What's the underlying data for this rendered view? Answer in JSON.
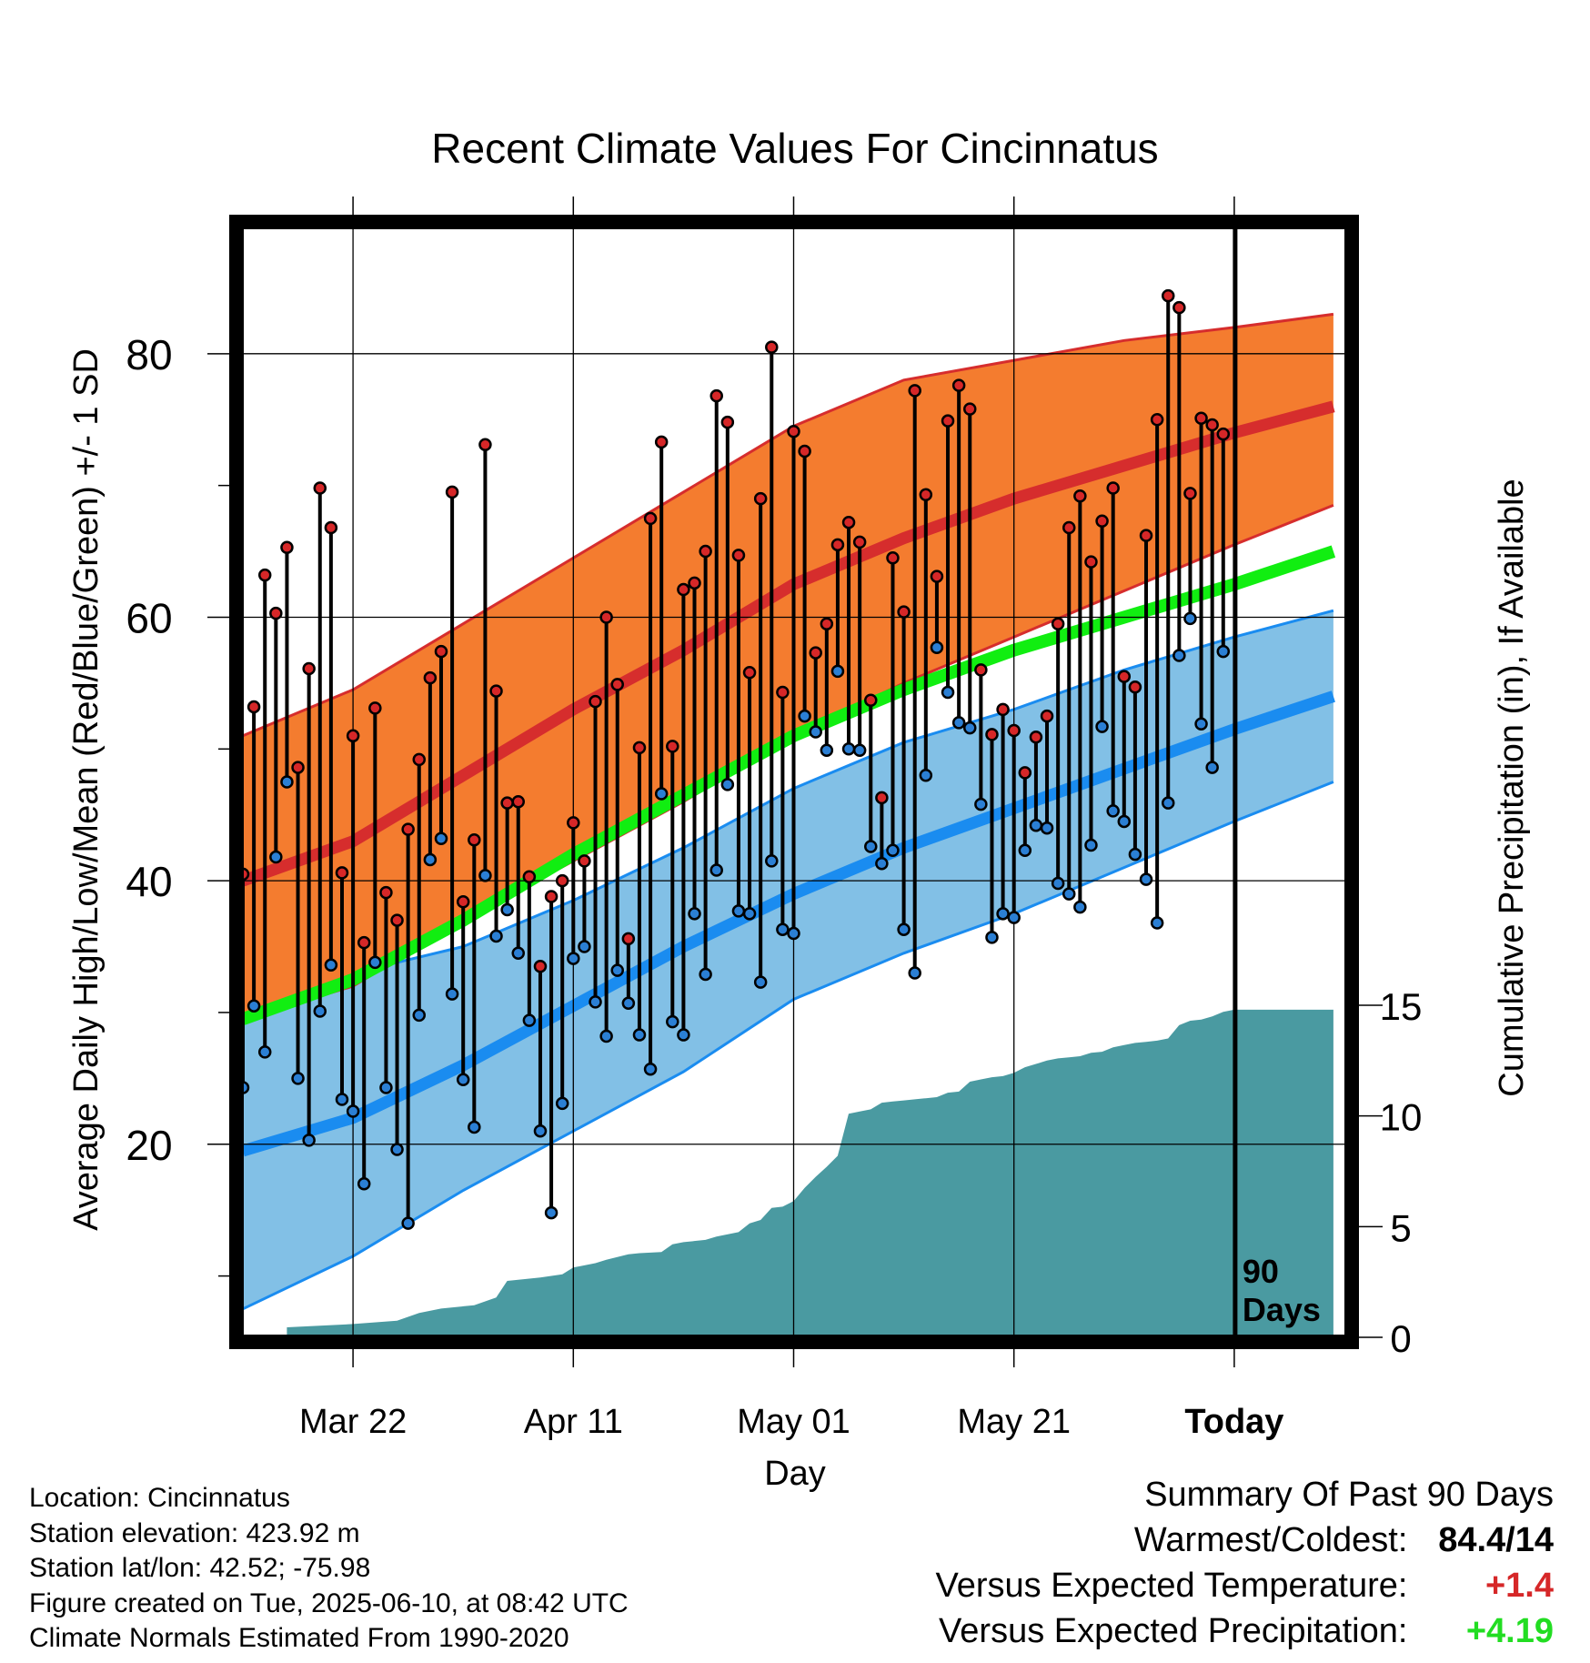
{
  "chart_data": {
    "type": "line",
    "title": "Recent Climate Values For Cincinnatus",
    "xlabel": "Day",
    "ylabel": "Average Daily High/Low/Mean (Red/Blue/Green) +/- 1 SD",
    "y2label": "Cumulative Precipitation (in), If Available",
    "x_ticks": [
      {
        "day": 10,
        "label": "Mar 22"
      },
      {
        "day": 30,
        "label": "Apr 11"
      },
      {
        "day": 50,
        "label": "May 01"
      },
      {
        "day": 70,
        "label": "May 21"
      },
      {
        "day": 90,
        "label": "Today"
      }
    ],
    "ylim": [
      5,
      90
    ],
    "yticks_labeled": [
      20,
      40,
      60,
      80
    ],
    "yticks_minor": [
      10,
      30,
      50,
      70
    ],
    "y2lim": [
      0,
      15
    ],
    "y2ticks": [
      0,
      5,
      10,
      15
    ],
    "today_marker": "90\nDays",
    "normals": {
      "high_mean": [
        [
          0,
          40
        ],
        [
          10,
          43
        ],
        [
          20,
          48
        ],
        [
          30,
          53
        ],
        [
          40,
          57.5
        ],
        [
          50,
          62.5
        ],
        [
          60,
          66
        ],
        [
          70,
          69
        ],
        [
          80,
          71.5
        ],
        [
          90,
          74
        ],
        [
          99,
          76
        ]
      ],
      "high_upper": [
        [
          0,
          51
        ],
        [
          10,
          54.5
        ],
        [
          20,
          59.5
        ],
        [
          30,
          64.5
        ],
        [
          40,
          69.5
        ],
        [
          50,
          74.5
        ],
        [
          60,
          78
        ],
        [
          70,
          79.5
        ],
        [
          80,
          81
        ],
        [
          90,
          82
        ],
        [
          99,
          83
        ]
      ],
      "high_lower": [
        [
          0,
          29.5
        ],
        [
          10,
          32
        ],
        [
          20,
          37
        ],
        [
          30,
          41.5
        ],
        [
          40,
          46
        ],
        [
          50,
          51
        ],
        [
          60,
          55
        ],
        [
          70,
          58.5
        ],
        [
          80,
          62
        ],
        [
          90,
          65.5
        ],
        [
          99,
          68.5
        ]
      ],
      "mean": [
        [
          0,
          29.5
        ],
        [
          10,
          32.5
        ],
        [
          20,
          37
        ],
        [
          30,
          42
        ],
        [
          40,
          46.5
        ],
        [
          50,
          51
        ],
        [
          60,
          54.5
        ],
        [
          70,
          57.5
        ],
        [
          80,
          60
        ],
        [
          90,
          62.5
        ],
        [
          99,
          65
        ]
      ],
      "low_mean": [
        [
          0,
          19.5
        ],
        [
          10,
          22
        ],
        [
          20,
          26
        ],
        [
          30,
          30.5
        ],
        [
          40,
          35
        ],
        [
          50,
          39
        ],
        [
          60,
          42.5
        ],
        [
          70,
          45.5
        ],
        [
          80,
          48.5
        ],
        [
          90,
          51.5
        ],
        [
          99,
          54
        ]
      ],
      "low_upper": [
        [
          0,
          29.5
        ],
        [
          10,
          33
        ],
        [
          20,
          35
        ],
        [
          30,
          38.5
        ],
        [
          40,
          42.5
        ],
        [
          50,
          47
        ],
        [
          60,
          50.5
        ],
        [
          70,
          53
        ],
        [
          80,
          56
        ],
        [
          90,
          58.5
        ],
        [
          99,
          60.5
        ]
      ],
      "low_lower": [
        [
          0,
          7.5
        ],
        [
          10,
          11.5
        ],
        [
          20,
          16.5
        ],
        [
          30,
          21
        ],
        [
          40,
          25.5
        ],
        [
          50,
          31
        ],
        [
          60,
          34.5
        ],
        [
          70,
          37.5
        ],
        [
          80,
          41
        ],
        [
          90,
          44.5
        ],
        [
          99,
          47.5
        ]
      ]
    },
    "daily": [
      {
        "day": 0,
        "high": 40.5,
        "low": 24.3
      },
      {
        "day": 1,
        "high": 53.2,
        "low": 30.5
      },
      {
        "day": 2,
        "high": 63.2,
        "low": 27
      },
      {
        "day": 3,
        "high": 60.3,
        "low": 41.8
      },
      {
        "day": 4,
        "high": 65.3,
        "low": 47.5
      },
      {
        "day": 5,
        "high": 48.6,
        "low": 25
      },
      {
        "day": 6,
        "high": 56.1,
        "low": 20.3
      },
      {
        "day": 7,
        "high": 69.8,
        "low": 30.1
      },
      {
        "day": 8,
        "high": 66.8,
        "low": 33.6
      },
      {
        "day": 9,
        "high": 40.6,
        "low": 23.4
      },
      {
        "day": 10,
        "high": 51,
        "low": 22.5
      },
      {
        "day": 11,
        "high": 35.3,
        "low": 17
      },
      {
        "day": 12,
        "high": 53.1,
        "low": 33.8
      },
      {
        "day": 13,
        "high": 39.1,
        "low": 24.3
      },
      {
        "day": 14,
        "high": 37,
        "low": 19.6
      },
      {
        "day": 15,
        "high": 43.9,
        "low": 14
      },
      {
        "day": 16,
        "high": 49.2,
        "low": 29.8
      },
      {
        "day": 17,
        "high": 55.4,
        "low": 41.6
      },
      {
        "day": 18,
        "high": 57.4,
        "low": 43.2
      },
      {
        "day": 19,
        "high": 69.5,
        "low": 31.4
      },
      {
        "day": 20,
        "high": 38.4,
        "low": 24.9
      },
      {
        "day": 21,
        "high": 43.1,
        "low": 21.3
      },
      {
        "day": 22,
        "high": 73.1,
        "low": 40.4
      },
      {
        "day": 23,
        "high": 54.4,
        "low": 35.8
      },
      {
        "day": 24,
        "high": 45.9,
        "low": 37.8
      },
      {
        "day": 25,
        "high": 46,
        "low": 34.5
      },
      {
        "day": 26,
        "high": 40.3,
        "low": 29.4
      },
      {
        "day": 27,
        "high": 33.5,
        "low": 21
      },
      {
        "day": 28,
        "high": 38.8,
        "low": 14.8
      },
      {
        "day": 29,
        "high": 40,
        "low": 23.1
      },
      {
        "day": 30,
        "high": 44.4,
        "low": 34.1
      },
      {
        "day": 31,
        "high": 41.5,
        "low": 35
      },
      {
        "day": 32,
        "high": 53.6,
        "low": 30.8
      },
      {
        "day": 33,
        "high": 60,
        "low": 28.2
      },
      {
        "day": 34,
        "high": 54.9,
        "low": 33.2
      },
      {
        "day": 35,
        "high": 35.6,
        "low": 30.7
      },
      {
        "day": 36,
        "high": 50.1,
        "low": 28.3
      },
      {
        "day": 37,
        "high": 67.5,
        "low": 25.7
      },
      {
        "day": 38,
        "high": 73.3,
        "low": 46.6
      },
      {
        "day": 39,
        "high": 50.2,
        "low": 29.3
      },
      {
        "day": 40,
        "high": 62.1,
        "low": 28.3
      },
      {
        "day": 41,
        "high": 62.6,
        "low": 37.5
      },
      {
        "day": 42,
        "high": 65,
        "low": 32.9
      },
      {
        "day": 43,
        "high": 76.8,
        "low": 40.8
      },
      {
        "day": 44,
        "high": 74.8,
        "low": 47.3
      },
      {
        "day": 45,
        "high": 64.7,
        "low": 37.7
      },
      {
        "day": 46,
        "high": 55.8,
        "low": 37.5
      },
      {
        "day": 47,
        "high": 69,
        "low": 32.3
      },
      {
        "day": 48,
        "high": 80.5,
        "low": 41.5
      },
      {
        "day": 49,
        "high": 54.3,
        "low": 36.3
      },
      {
        "day": 50,
        "high": 74.1,
        "low": 36
      },
      {
        "day": 51,
        "high": 72.6,
        "low": 52.5
      },
      {
        "day": 52,
        "high": 57.3,
        "low": 51.3
      },
      {
        "day": 53,
        "high": 59.5,
        "low": 49.9
      },
      {
        "day": 54,
        "high": 65.5,
        "low": 55.9
      },
      {
        "day": 55,
        "high": 67.2,
        "low": 50
      },
      {
        "day": 56,
        "high": 65.7,
        "low": 49.9
      },
      {
        "day": 57,
        "high": 53.7,
        "low": 42.6
      },
      {
        "day": 58,
        "high": 46.3,
        "low": 41.3
      },
      {
        "day": 59,
        "high": 64.5,
        "low": 42.3
      },
      {
        "day": 60,
        "high": 60.4,
        "low": 36.3
      },
      {
        "day": 61,
        "high": 77.2,
        "low": 33
      },
      {
        "day": 62,
        "high": 69.3,
        "low": 48
      },
      {
        "day": 63,
        "high": 63.1,
        "low": 57.7
      },
      {
        "day": 64,
        "high": 74.9,
        "low": 54.3
      },
      {
        "day": 65,
        "high": 77.6,
        "low": 52
      },
      {
        "day": 66,
        "high": 75.8,
        "low": 51.6
      },
      {
        "day": 67,
        "high": 56,
        "low": 45.8
      },
      {
        "day": 68,
        "high": 51.1,
        "low": 35.7
      },
      {
        "day": 69,
        "high": 53,
        "low": 37.5
      },
      {
        "day": 70,
        "high": 51.4,
        "low": 37.2
      },
      {
        "day": 71,
        "high": 48.2,
        "low": 42.3
      },
      {
        "day": 72,
        "high": 50.9,
        "low": 44.2
      },
      {
        "day": 73,
        "high": 52.5,
        "low": 44
      },
      {
        "day": 74,
        "high": 59.5,
        "low": 39.8
      },
      {
        "day": 75,
        "high": 66.8,
        "low": 39
      },
      {
        "day": 76,
        "high": 69.2,
        "low": 38
      },
      {
        "day": 77,
        "high": 64.2,
        "low": 42.7
      },
      {
        "day": 78,
        "high": 67.3,
        "low": 51.7
      },
      {
        "day": 79,
        "high": 69.8,
        "low": 45.3
      },
      {
        "day": 80,
        "high": 55.5,
        "low": 44.5
      },
      {
        "day": 81,
        "high": 54.7,
        "low": 42
      },
      {
        "day": 82,
        "high": 66.2,
        "low": 40.1
      },
      {
        "day": 83,
        "high": 75,
        "low": 36.8
      },
      {
        "day": 84,
        "high": 84.4,
        "low": 45.9
      },
      {
        "day": 85,
        "high": 83.5,
        "low": 57.1
      },
      {
        "day": 86,
        "high": 69.4,
        "low": 59.9
      },
      {
        "day": 87,
        "high": 75.1,
        "low": 51.9
      },
      {
        "day": 88,
        "high": 74.6,
        "low": 48.6
      },
      {
        "day": 89,
        "high": 73.9,
        "low": 57.4
      }
    ],
    "precip_cumulative": [
      [
        4,
        0
      ],
      [
        4,
        0.45
      ],
      [
        10,
        0.6
      ],
      [
        14,
        0.75
      ],
      [
        16,
        1.1
      ],
      [
        18,
        1.3
      ],
      [
        21,
        1.45
      ],
      [
        23,
        1.8
      ],
      [
        24,
        2.55
      ],
      [
        27,
        2.7
      ],
      [
        29,
        2.85
      ],
      [
        30,
        3.15
      ],
      [
        32,
        3.35
      ],
      [
        33,
        3.5
      ],
      [
        35,
        3.75
      ],
      [
        36,
        3.8
      ],
      [
        38,
        3.85
      ],
      [
        39,
        4.2
      ],
      [
        40,
        4.3
      ],
      [
        42,
        4.4
      ],
      [
        43,
        4.55
      ],
      [
        45,
        4.75
      ],
      [
        46,
        5.15
      ],
      [
        47,
        5.3
      ],
      [
        48,
        5.85
      ],
      [
        49,
        5.9
      ],
      [
        50,
        6.15
      ],
      [
        51,
        6.75
      ],
      [
        52,
        7.25
      ],
      [
        53,
        7.7
      ],
      [
        54,
        8.2
      ],
      [
        55,
        10.1
      ],
      [
        56,
        10.2
      ],
      [
        57,
        10.3
      ],
      [
        58,
        10.6
      ],
      [
        59,
        10.65
      ],
      [
        60,
        10.7
      ],
      [
        61,
        10.75
      ],
      [
        62,
        10.8
      ],
      [
        63,
        10.85
      ],
      [
        64,
        11.05
      ],
      [
        65,
        11.1
      ],
      [
        66,
        11.55
      ],
      [
        67,
        11.65
      ],
      [
        68,
        11.75
      ],
      [
        69,
        11.8
      ],
      [
        70,
        11.95
      ],
      [
        71,
        12.2
      ],
      [
        72,
        12.35
      ],
      [
        73,
        12.5
      ],
      [
        74,
        12.6
      ],
      [
        75,
        12.65
      ],
      [
        76,
        12.7
      ],
      [
        77,
        12.85
      ],
      [
        78,
        12.9
      ],
      [
        79,
        13.1
      ],
      [
        80,
        13.2
      ],
      [
        81,
        13.3
      ],
      [
        82,
        13.35
      ],
      [
        83,
        13.4
      ],
      [
        84,
        13.5
      ],
      [
        85,
        14.1
      ],
      [
        86,
        14.3
      ],
      [
        87,
        14.35
      ],
      [
        88,
        14.5
      ],
      [
        89,
        14.7
      ],
      [
        90,
        14.8
      ],
      [
        99,
        14.8
      ],
      [
        99,
        0
      ]
    ]
  },
  "info": {
    "location": "Location: Cincinnatus",
    "elevation": "Station elevation: 423.92 m",
    "latlon": "Station lat/lon: 42.52; -75.98",
    "created": "Figure created on Tue, 2025-06-10, at 08:42 UTC",
    "normals": "Climate Normals Estimated From 1990-2020"
  },
  "summary": {
    "heading": "Summary Of Past 90 Days",
    "warmest_label": "Warmest/Coldest:",
    "warmest_value": "84.4/14",
    "temp_label": "Versus Expected Temperature:",
    "temp_value": "+1.4",
    "precip_label": "Versus Expected Precipitation:",
    "precip_value": "+4.19"
  },
  "colors": {
    "high_band": "#f47c2f",
    "high_mean": "#d62d2d",
    "mean": "#11ee11",
    "low_band": "#82c0e6",
    "low_mean": "#1a8cf0",
    "precip": "#4a9aa1",
    "high_dot": "#d62728",
    "low_dot": "#2b7fd4"
  }
}
